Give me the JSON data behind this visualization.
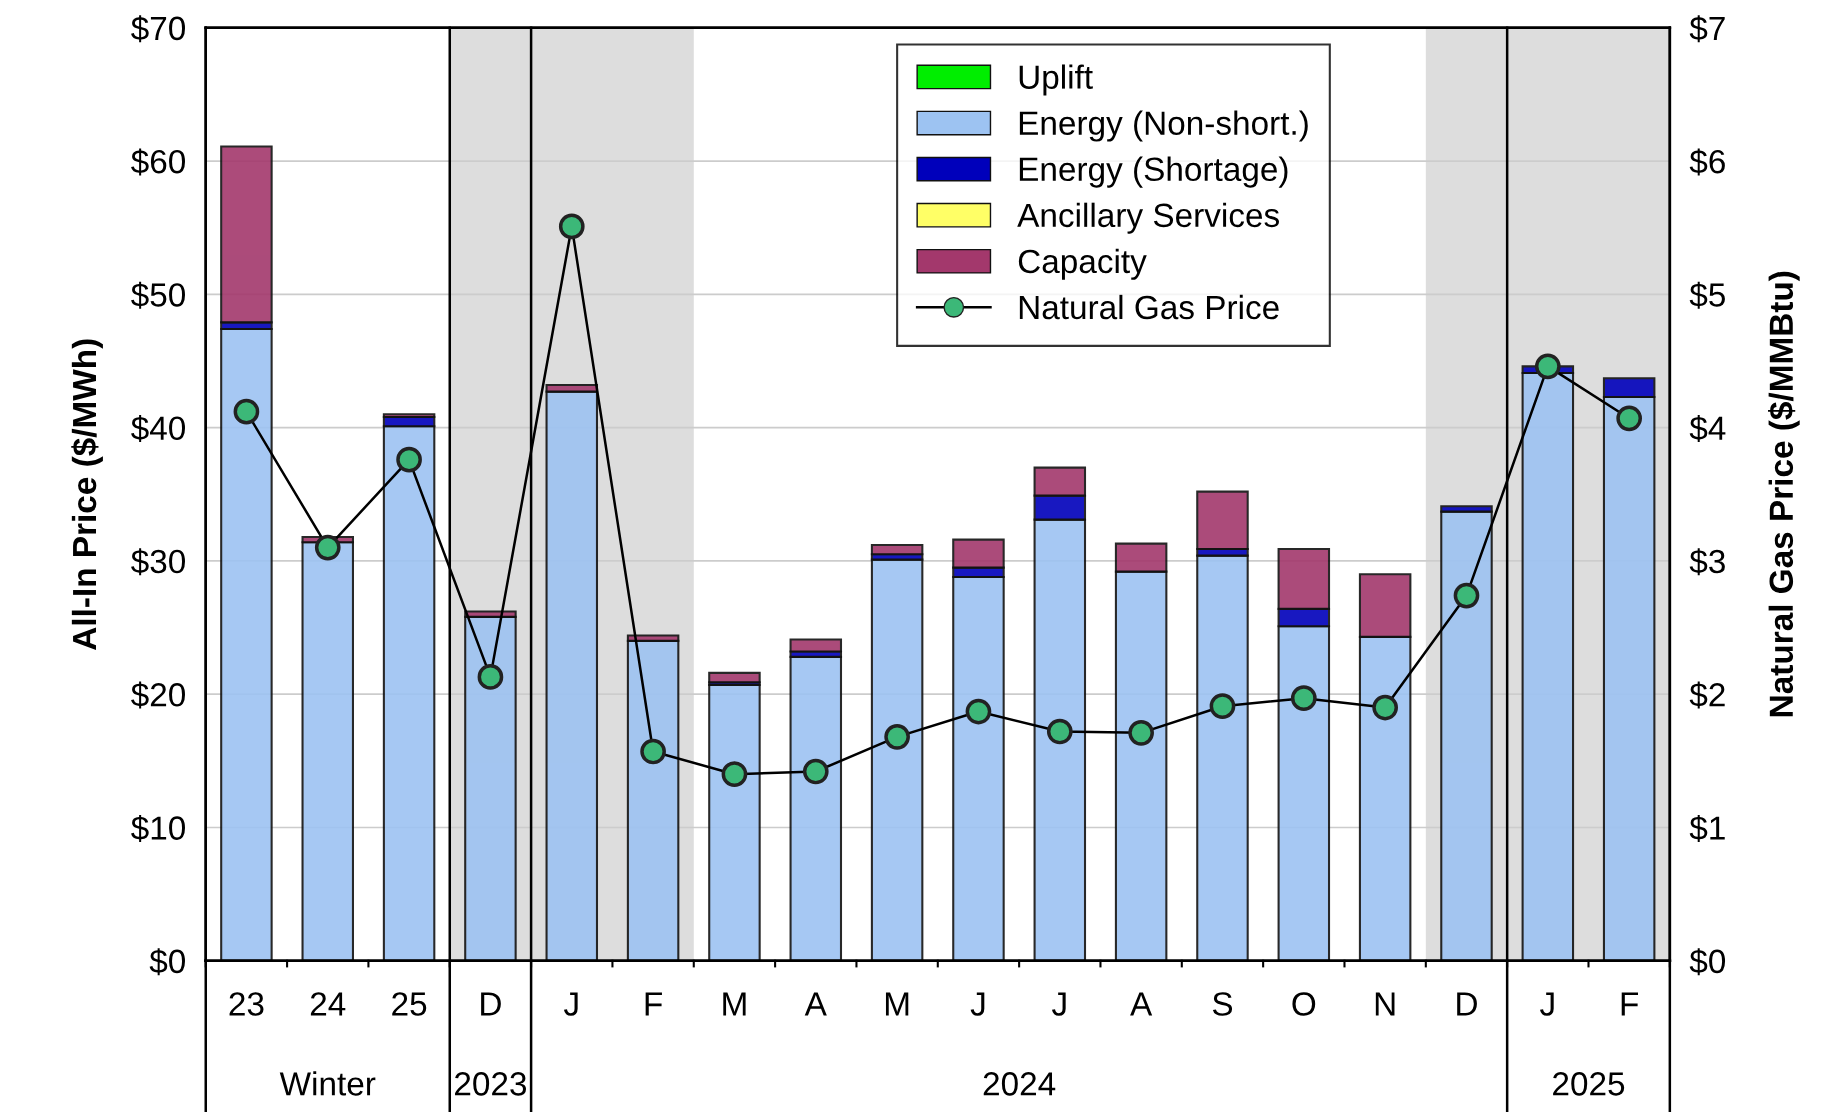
{
  "chart_data": {
    "type": "bar",
    "stacked": true,
    "ylabel": "All-In Price ($/MWh)",
    "y2label": "Natural Gas Price ($/MMBtu)",
    "categories": [
      "23",
      "24",
      "25",
      "D",
      "J",
      "F",
      "M",
      "A",
      "M",
      "J",
      "J",
      "A",
      "S",
      "O",
      "N",
      "D",
      "J",
      "F"
    ],
    "series": [
      {
        "name": "Uplift",
        "color": "#00ee00",
        "values": [
          0,
          0,
          0,
          0,
          0,
          0,
          0,
          0,
          0,
          0,
          0,
          0,
          0,
          0,
          0,
          0,
          0,
          0
        ]
      },
      {
        "name": "Energy (Non-short.)",
        "color": "#9dc3f2",
        "values": [
          47.4,
          31.4,
          40.1,
          25.8,
          42.7,
          24.0,
          20.7,
          22.8,
          30.1,
          28.8,
          33.1,
          29.2,
          30.4,
          25.1,
          24.3,
          33.7,
          44.1,
          42.3
        ]
      },
      {
        "name": "Energy (Shortage)",
        "color": "#0000bb",
        "values": [
          0.5,
          0,
          0.7,
          0,
          0,
          0,
          0.2,
          0.4,
          0.4,
          0.7,
          1.8,
          0,
          0.5,
          1.3,
          0,
          0.4,
          0.5,
          1.4
        ]
      },
      {
        "name": "Ancillary Services",
        "color": "#ffff66",
        "values": [
          0,
          0,
          0,
          0,
          0,
          0,
          0,
          0,
          0,
          0,
          0,
          0,
          0,
          0,
          0,
          0,
          0,
          0
        ]
      },
      {
        "name": "Capacity",
        "color": "#a3386c",
        "values": [
          13.2,
          0.4,
          0.2,
          0.4,
          0.5,
          0.4,
          0.7,
          0.9,
          0.7,
          2.1,
          2.1,
          2.1,
          4.3,
          4.5,
          4.7,
          0,
          0,
          0
        ]
      },
      {
        "name": "Natural Gas Price",
        "type": "line",
        "axis": "y2",
        "color": "#3cb878",
        "marker": "circle",
        "values": [
          4.12,
          3.1,
          3.76,
          2.13,
          5.51,
          1.57,
          1.4,
          1.42,
          1.68,
          1.87,
          1.72,
          1.71,
          1.91,
          1.97,
          1.9,
          2.74,
          4.46,
          4.07
        ]
      }
    ],
    "ylim": [
      0,
      70
    ],
    "yticks": [
      {
        "value": 0,
        "label": "$0"
      },
      {
        "value": 10,
        "label": "$10"
      },
      {
        "value": 20,
        "label": "$20"
      },
      {
        "value": 30,
        "label": "$30"
      },
      {
        "value": 40,
        "label": "$40"
      },
      {
        "value": 50,
        "label": "$50"
      },
      {
        "value": 60,
        "label": "$60"
      },
      {
        "value": 70,
        "label": "$70"
      }
    ],
    "y2lim": [
      0,
      7
    ],
    "y2ticks": [
      {
        "value": 0,
        "label": "$0"
      },
      {
        "value": 1,
        "label": "$1"
      },
      {
        "value": 2,
        "label": "$2"
      },
      {
        "value": 3,
        "label": "$3"
      },
      {
        "value": 4,
        "label": "$4"
      },
      {
        "value": 5,
        "label": "$5"
      },
      {
        "value": 6,
        "label": "$6"
      },
      {
        "value": 7,
        "label": "$7"
      }
    ],
    "annotations": [
      "Winter",
      "2023",
      "2024",
      "2025"
    ],
    "grid": "y",
    "legend": "top"
  }
}
